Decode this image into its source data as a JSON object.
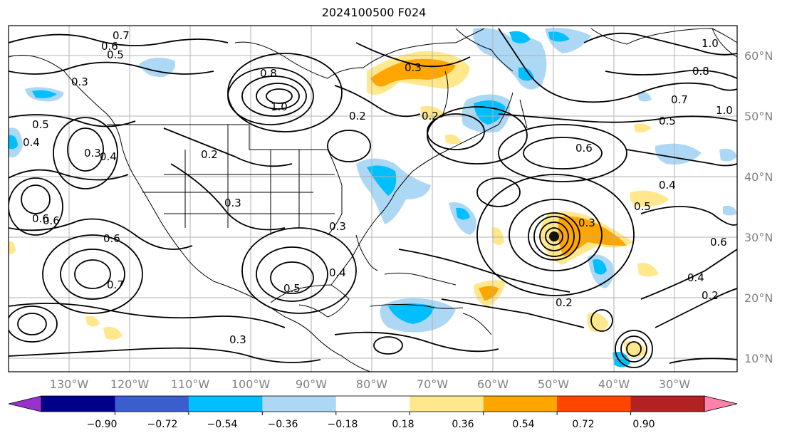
{
  "title": "2024100500 F024",
  "map": {
    "lon_range": [
      -140,
      25
    ],
    "lat_range": [
      8,
      66
    ],
    "gridlines": true,
    "lat_ticks": [
      "60°N",
      "50°N",
      "40°N",
      "30°N",
      "20°N",
      "10°N"
    ],
    "lon_ticks": [
      "130°W",
      "120°W",
      "110°W",
      "100°W",
      "90°W",
      "80°W",
      "70°W",
      "60°W",
      "50°W",
      "40°W",
      "30°W"
    ],
    "contour_labels": [
      "0.7",
      "0.6",
      "0.5",
      "0.3",
      "0.5",
      "0.4",
      "0.3",
      "0.8",
      "1.0",
      "0.2",
      "0.3",
      "0.4",
      "0.2",
      "0.3",
      "0.6",
      "1.0",
      "1.0",
      "0.8",
      "0.7",
      "0.5",
      "0.6",
      "0.4",
      "0.5",
      "0.6",
      "0.2",
      "0.3",
      "0.2",
      "0.3",
      "0.4",
      "0.5",
      "0.3",
      "0.2",
      "0.7",
      "0.6",
      "0.6",
      "0.4"
    ]
  },
  "colorbar": {
    "ticks": [
      "−0.90",
      "−0.72",
      "−0.54",
      "−0.36",
      "−0.18",
      "0.18",
      "0.36",
      "0.54",
      "0.72",
      "0.90"
    ],
    "colors": [
      "#9932cc",
      "#00008b",
      "#3a5fcd",
      "#00bfff",
      "#add8f5",
      "#ffffff",
      "#ffe88c",
      "#ffa500",
      "#ff4500",
      "#b22222",
      "#ff82ab"
    ]
  }
}
